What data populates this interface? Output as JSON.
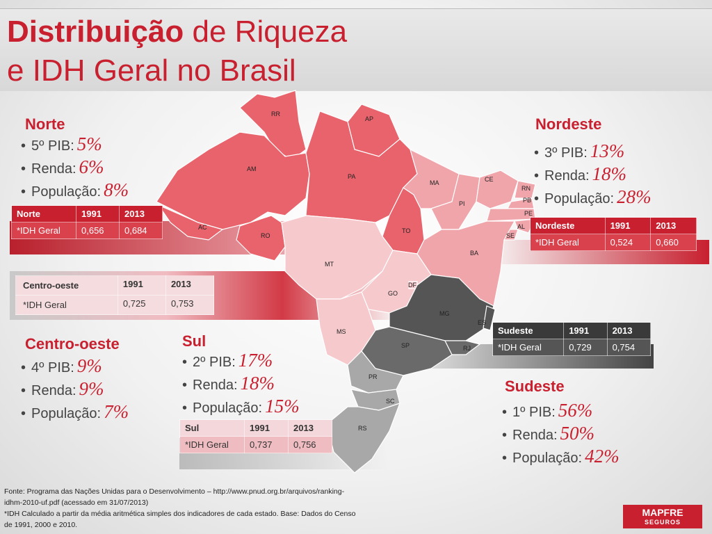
{
  "title": {
    "bold": "Distribuição",
    "rest1": " de Riqueza",
    "line2": "e IDH Geral no Brasil"
  },
  "regions": {
    "norte": {
      "name": "Norte",
      "pib_label": "5º PIB:",
      "pib": "5%",
      "renda_label": "Renda:",
      "renda": "6%",
      "pop_label": "População:",
      "pop": "8%",
      "table": {
        "h": [
          "Norte",
          "1991",
          "2013"
        ],
        "r": [
          "*IDH Geral",
          "0,656",
          "0,684"
        ]
      }
    },
    "nordeste": {
      "name": "Nordeste",
      "pib_label": "3º PIB:",
      "pib": "13%",
      "renda_label": "Renda:",
      "renda": "18%",
      "pop_label": "População:",
      "pop": "28%",
      "table": {
        "h": [
          "Nordeste",
          "1991",
          "2013"
        ],
        "r": [
          "*IDH Geral",
          "0,524",
          "0,660"
        ]
      }
    },
    "centro": {
      "name": "Centro-oeste",
      "pib_label": "4º PIB:",
      "pib": "9%",
      "renda_label": "Renda:",
      "renda": "9%",
      "pop_label": "População:",
      "pop": "7%",
      "table": {
        "h": [
          "Centro-oeste",
          "1991",
          "2013"
        ],
        "r": [
          "*IDH Geral",
          "0,725",
          "0,753"
        ]
      }
    },
    "sul": {
      "name": "Sul",
      "pib_label": "2º PIB:",
      "pib": "17%",
      "renda_label": "Renda:",
      "renda": "18%",
      "pop_label": "População:",
      "pop": "15%",
      "table": {
        "h": [
          "Sul",
          "1991",
          "2013"
        ],
        "r": [
          "*IDH Geral",
          "0,737",
          "0,756"
        ]
      }
    },
    "sudeste": {
      "name": "Sudeste",
      "pib_label": "1º PIB:",
      "pib": "56%",
      "renda_label": "Renda:",
      "renda": "50%",
      "pop_label": "População:",
      "pop": "42%",
      "table": {
        "h": [
          "Sudeste",
          "1991",
          "2013"
        ],
        "r": [
          "*IDH Geral",
          "0,729",
          "0,754"
        ]
      }
    }
  },
  "states": [
    "RR",
    "AP",
    "AM",
    "PA",
    "MA",
    "CE",
    "RN",
    "PB",
    "PE",
    "AL",
    "SE",
    "PI",
    "AC",
    "RO",
    "TO",
    "BA",
    "MT",
    "DF",
    "GO",
    "MG",
    "ES",
    "MS",
    "SP",
    "RJ",
    "PR",
    "SC",
    "RS"
  ],
  "footer": {
    "line1": "Fonte: Programa das Nações Unidas para o Desenvolvimento – http://www.pnud.org.br/arquivos/ranking-",
    "line2": "idhm-2010-uf.pdf (acessado em 31/07/2013)",
    "line3": "*IDH Calculado a partir da média aritmética simples dos indicadores de cada estado. Base: Dados do Censo",
    "line4": "de 1991, 2000 e 2010."
  },
  "logo": {
    "name": "MAPFRE",
    "sub": "SEGUROS"
  },
  "colors": {
    "accent": "#c8202f"
  }
}
